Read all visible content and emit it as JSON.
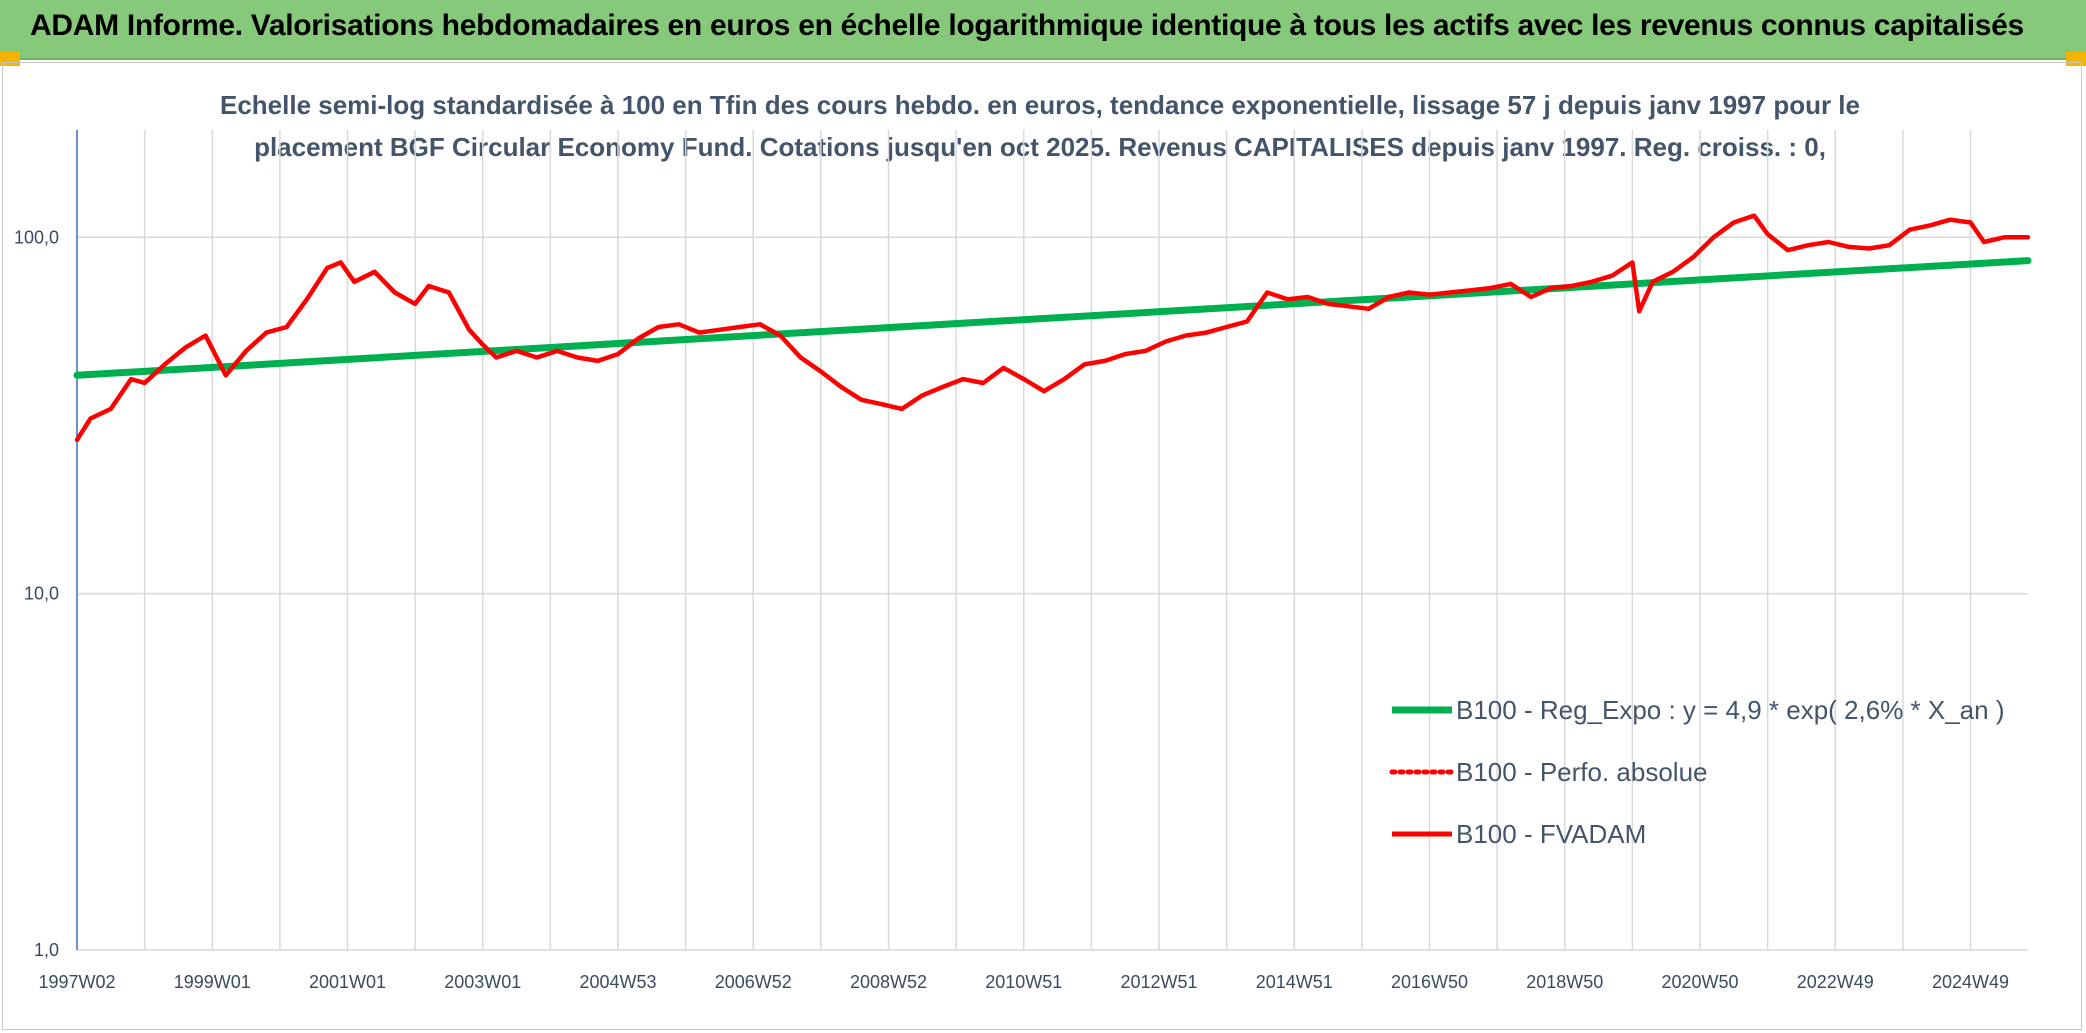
{
  "header": {
    "title": "ADAM Informe. Valorisations hebdomadaires en euros en échelle logarithmique identique à tous les actifs avec les revenus connus capitalisés"
  },
  "chart_data": {
    "type": "line",
    "title_line1": "Echelle semi-log standardisée à 100 en Tfin des cours hebdo. en euros, tendance exponentielle, lissage 57 j depuis janv 1997 pour le",
    "title_line2": "placement BGF Circular Economy Fund. Cotations jusqu'en oct 2025. Revenus CAPITALISES depuis janv 1997. Reg. croiss. : 0,",
    "xlabel": "",
    "ylabel": "",
    "y_scale": "log",
    "ylim": [
      1,
      200
    ],
    "xlim": [
      1997.0,
      2025.85
    ],
    "y_ticks": [
      {
        "value": 1,
        "label": "1,0"
      },
      {
        "value": 10,
        "label": "10,0"
      },
      {
        "value": 100,
        "label": "100,0"
      }
    ],
    "x_ticks": [
      {
        "value": 1997.0,
        "label": "1997W02"
      },
      {
        "value": 1999.0,
        "label": "1999W01"
      },
      {
        "value": 2001.0,
        "label": "2001W01"
      },
      {
        "value": 2003.0,
        "label": "2003W01"
      },
      {
        "value": 2005.0,
        "label": "2004W53"
      },
      {
        "value": 2007.0,
        "label": "2006W52"
      },
      {
        "value": 2009.0,
        "label": "2008W52"
      },
      {
        "value": 2011.0,
        "label": "2010W51"
      },
      {
        "value": 2013.0,
        "label": "2012W51"
      },
      {
        "value": 2015.0,
        "label": "2014W51"
      },
      {
        "value": 2017.0,
        "label": "2016W50"
      },
      {
        "value": 2019.0,
        "label": "2018W50"
      },
      {
        "value": 2021.0,
        "label": "2020W50"
      },
      {
        "value": 2023.0,
        "label": "2022W49"
      },
      {
        "value": 2025.0,
        "label": "2024W49"
      }
    ],
    "grid": {
      "vertical": true,
      "horizontal": true
    },
    "legend_position": "bottom-right",
    "series": [
      {
        "name": "B100 - Reg_Expo : y = 4,9 * exp( 2,6% *  X_an )",
        "color": "#00b050",
        "style": "solid",
        "x": [
          1997.0,
          2025.85
        ],
        "y": [
          41,
          86
        ]
      },
      {
        "name": "B100 - Perfo. absolue",
        "color": "#ff0000",
        "style": "dotted",
        "x": [],
        "y": []
      },
      {
        "name": "B100 - FVADAM",
        "color": "#ff0000",
        "style": "solid",
        "x": [
          1997.0,
          1997.2,
          1997.5,
          1997.8,
          1998.0,
          1998.3,
          1998.6,
          1998.9,
          1999.2,
          1999.5,
          1999.8,
          2000.1,
          2000.4,
          2000.7,
          2000.9,
          2001.1,
          2001.4,
          2001.7,
          2002.0,
          2002.2,
          2002.5,
          2002.8,
          2003.0,
          2003.2,
          2003.5,
          2003.8,
          2004.1,
          2004.4,
          2004.7,
          2005.0,
          2005.3,
          2005.6,
          2005.9,
          2006.2,
          2006.5,
          2006.8,
          2007.1,
          2007.4,
          2007.7,
          2008.0,
          2008.3,
          2008.6,
          2008.9,
          2009.2,
          2009.5,
          2009.8,
          2010.1,
          2010.4,
          2010.7,
          2011.0,
          2011.3,
          2011.6,
          2011.9,
          2012.2,
          2012.5,
          2012.8,
          2013.1,
          2013.4,
          2013.7,
          2014.0,
          2014.3,
          2014.6,
          2014.9,
          2015.2,
          2015.5,
          2015.8,
          2016.1,
          2016.4,
          2016.7,
          2017.0,
          2017.3,
          2017.6,
          2017.9,
          2018.2,
          2018.5,
          2018.8,
          2019.1,
          2019.4,
          2019.7,
          2020.0,
          2020.1,
          2020.3,
          2020.6,
          2020.9,
          2021.2,
          2021.5,
          2021.8,
          2022.0,
          2022.3,
          2022.6,
          2022.9,
          2023.2,
          2023.5,
          2023.8,
          2024.1,
          2024.4,
          2024.7,
          2025.0,
          2025.2,
          2025.5,
          2025.85
        ],
        "y": [
          27,
          31,
          33,
          40,
          39,
          44,
          49,
          53,
          41,
          48,
          54,
          56,
          67,
          82,
          85,
          75,
          80,
          70,
          65,
          73,
          70,
          55,
          50,
          46,
          48,
          46,
          48,
          46,
          45,
          47,
          52,
          56,
          57,
          54,
          55,
          56,
          57,
          53,
          46,
          42,
          38,
          35,
          34,
          33,
          36,
          38,
          40,
          39,
          43,
          40,
          37,
          40,
          44,
          45,
          47,
          48,
          51,
          53,
          54,
          56,
          58,
          70,
          67,
          68,
          65,
          64,
          63,
          68,
          70,
          69,
          70,
          71,
          72,
          74,
          68,
          72,
          73,
          75,
          78,
          85,
          62,
          75,
          80,
          88,
          100,
          110,
          115,
          102,
          92,
          95,
          97,
          94,
          93,
          95,
          105,
          108,
          112,
          110,
          97,
          100,
          100
        ]
      }
    ]
  }
}
